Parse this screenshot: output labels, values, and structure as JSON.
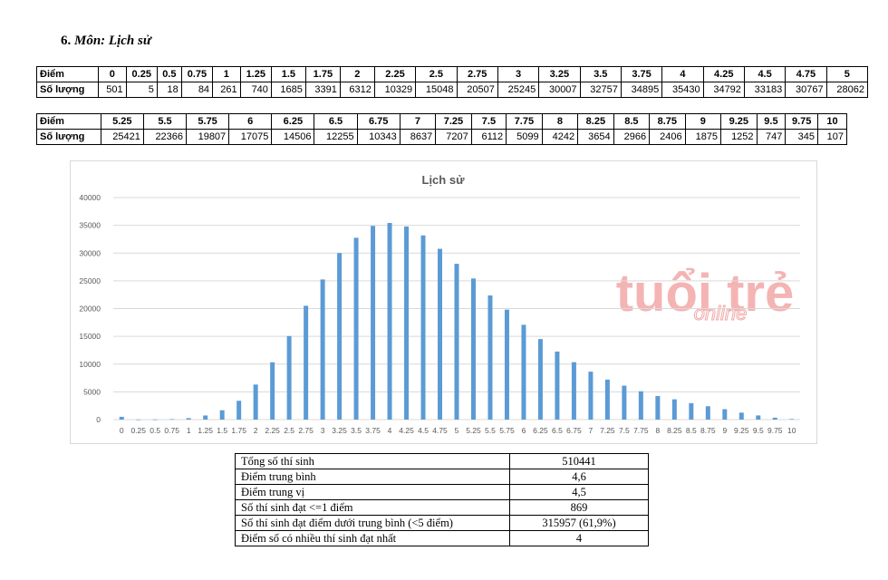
{
  "section": {
    "number": "6.",
    "title": "Môn: Lịch sử"
  },
  "table_labels": {
    "score": "Điểm",
    "count": "Số lượng"
  },
  "chart_data": {
    "type": "bar",
    "title": "Lịch sử",
    "categories": [
      "0",
      "0.25",
      "0.5",
      "0.75",
      "1",
      "1.25",
      "1.5",
      "1.75",
      "2",
      "2.25",
      "2.5",
      "2.75",
      "3",
      "3.25",
      "3.5",
      "3.75",
      "4",
      "4.25",
      "4.5",
      "4.75",
      "5",
      "5.25",
      "5.5",
      "5.75",
      "6",
      "6.25",
      "6.5",
      "6.75",
      "7",
      "7.25",
      "7.5",
      "7.75",
      "8",
      "8.25",
      "8.5",
      "8.75",
      "9",
      "9.25",
      "9.5",
      "9.75",
      "10"
    ],
    "values": [
      501,
      5,
      18,
      84,
      261,
      740,
      1685,
      3391,
      6312,
      10329,
      15048,
      20507,
      25245,
      30007,
      32757,
      34895,
      35430,
      34792,
      33183,
      30767,
      28062,
      25421,
      22366,
      19807,
      17075,
      14506,
      12255,
      10343,
      8637,
      7207,
      6112,
      5099,
      4242,
      3654,
      2966,
      2406,
      1875,
      1252,
      747,
      345,
      107
    ],
    "ylim": [
      0,
      40000
    ],
    "yticks": [
      0,
      5000,
      10000,
      15000,
      20000,
      25000,
      30000,
      35000,
      40000
    ],
    "grid": true,
    "bar_color": "#5b9bd5"
  },
  "watermark": {
    "main": "tuổi trẻ",
    "sub": "online",
    "color": "#f3a8a8"
  },
  "summary": [
    {
      "label": "Tổng số thí sinh",
      "value": "510441"
    },
    {
      "label": "Điểm trung bình",
      "value": "4,6"
    },
    {
      "label": "Điểm trung vị",
      "value": "4,5"
    },
    {
      "label": "Số thí sinh đạt <=1 điểm",
      "value": "869"
    },
    {
      "label": "Số thí sinh đạt điểm dưới trung bình (<5 điểm)",
      "value": "315957 (61,9%)"
    },
    {
      "label": "Điểm số có nhiều thí sinh đạt nhất",
      "value": "4"
    }
  ]
}
